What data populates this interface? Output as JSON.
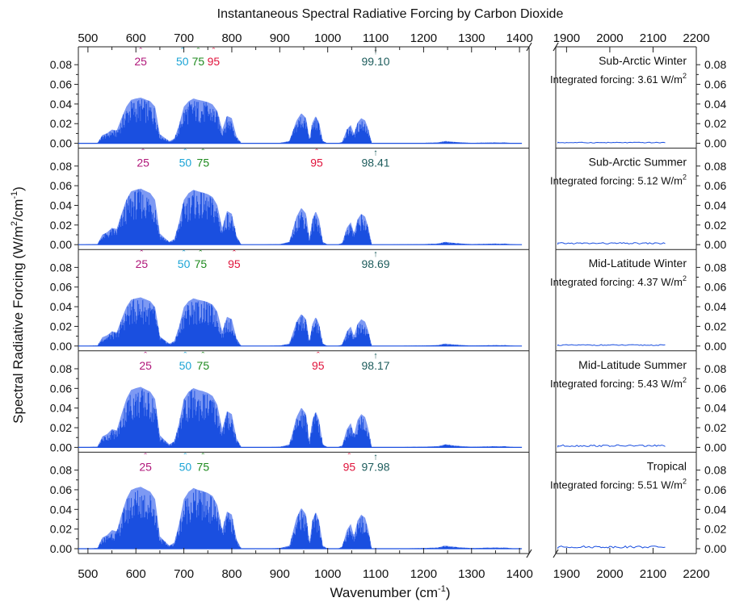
{
  "chart_data": {
    "type": "area",
    "title": "Instantaneous Spectral Radiative Forcing by Carbon Dioxide",
    "xlabel": "Wavenumber (cm",
    "xlabel_sup": "-1",
    "xlabel_end": ")",
    "ylabel": "Spectral Radiative Forcing (W/m",
    "ylabel_sup1": "2",
    "ylabel_mid": "/cm",
    "ylabel_sup2": "-1",
    "ylabel_end": ")",
    "ylim": [
      0,
      0.09
    ],
    "yticks": [
      "0.00",
      "0.02",
      "0.04",
      "0.06",
      "0.08"
    ],
    "x_broken_axis": {
      "left_range": [
        480,
        1420
      ],
      "right_range": [
        1875,
        2200
      ],
      "left_ticks": [
        500,
        600,
        700,
        800,
        900,
        1000,
        1100,
        1200,
        1300,
        1400
      ],
      "right_ticks": [
        1900,
        2000,
        2100,
        2200
      ]
    },
    "series_color": "#1a4fe0",
    "percentile_colors": {
      "25": "#b0177a",
      "50": "#1ba4d6",
      "75": "#1e8a1e",
      "95": "#e0143c",
      "total": "#1d5c5c"
    },
    "forcing_prefix": "Integrated forcing: ",
    "forcing_unit": " W/m",
    "forcing_unit_sup": "2",
    "envelope_x": [
      480,
      520,
      530,
      540,
      550,
      560,
      570,
      580,
      590,
      600,
      610,
      620,
      630,
      640,
      650,
      660,
      670,
      680,
      690,
      700,
      710,
      720,
      730,
      740,
      750,
      760,
      770,
      780,
      790,
      800,
      810,
      820,
      850,
      900,
      920,
      935,
      945,
      955,
      962,
      968,
      975,
      982,
      990,
      1000,
      1020,
      1030,
      1040,
      1048,
      1055,
      1062,
      1070,
      1078,
      1085,
      1092,
      1100,
      1200,
      1230,
      1245,
      1255,
      1265,
      1280,
      1300,
      1330,
      1350,
      1360,
      1370,
      1380,
      1400,
      1420
    ],
    "panels": [
      {
        "name": "Sub-Arctic Winter",
        "forcing": "3.61",
        "scale": 0.62,
        "right_level": 0.0008,
        "markers": [
          {
            "label": "25",
            "x": 610,
            "key": "25"
          },
          {
            "label": "50",
            "x": 697,
            "key": "50"
          },
          {
            "label": "75",
            "x": 730,
            "key": "75"
          },
          {
            "label": "95",
            "x": 762,
            "key": "95"
          },
          {
            "label": "99.10",
            "x": 1100,
            "key": "total"
          }
        ]
      },
      {
        "name": "Sub-Arctic Summer",
        "forcing": "5.12",
        "scale": 0.76,
        "right_level": 0.0015,
        "markers": [
          {
            "label": "25",
            "x": 615,
            "key": "25"
          },
          {
            "label": "50",
            "x": 703,
            "key": "50"
          },
          {
            "label": "75",
            "x": 740,
            "key": "75"
          },
          {
            "label": "95",
            "x": 977,
            "key": "95"
          },
          {
            "label": "98.41",
            "x": 1100,
            "key": "total"
          }
        ]
      },
      {
        "name": "Mid-Latitude Winter",
        "forcing": "4.37",
        "scale": 0.66,
        "right_level": 0.001,
        "markers": [
          {
            "label": "25",
            "x": 612,
            "key": "25"
          },
          {
            "label": "50",
            "x": 700,
            "key": "50"
          },
          {
            "label": "75",
            "x": 735,
            "key": "75"
          },
          {
            "label": "95",
            "x": 805,
            "key": "95"
          },
          {
            "label": "98.69",
            "x": 1100,
            "key": "total"
          }
        ]
      },
      {
        "name": "Mid-Latitude Summer",
        "forcing": "5.43",
        "scale": 0.82,
        "right_level": 0.0018,
        "markers": [
          {
            "label": "25",
            "x": 620,
            "key": "25"
          },
          {
            "label": "50",
            "x": 703,
            "key": "50"
          },
          {
            "label": "75",
            "x": 740,
            "key": "75"
          },
          {
            "label": "95",
            "x": 980,
            "key": "95"
          },
          {
            "label": "98.17",
            "x": 1100,
            "key": "total"
          }
        ]
      },
      {
        "name": "Tropical",
        "forcing": "5.51",
        "scale": 0.84,
        "right_level": 0.002,
        "markers": [
          {
            "label": "25",
            "x": 620,
            "key": "25"
          },
          {
            "label": "50",
            "x": 703,
            "key": "50"
          },
          {
            "label": "75",
            "x": 740,
            "key": "75"
          },
          {
            "label": "95",
            "x": 1045,
            "key": "95"
          },
          {
            "label": "97.98",
            "x": 1100,
            "key": "total"
          }
        ]
      }
    ]
  }
}
